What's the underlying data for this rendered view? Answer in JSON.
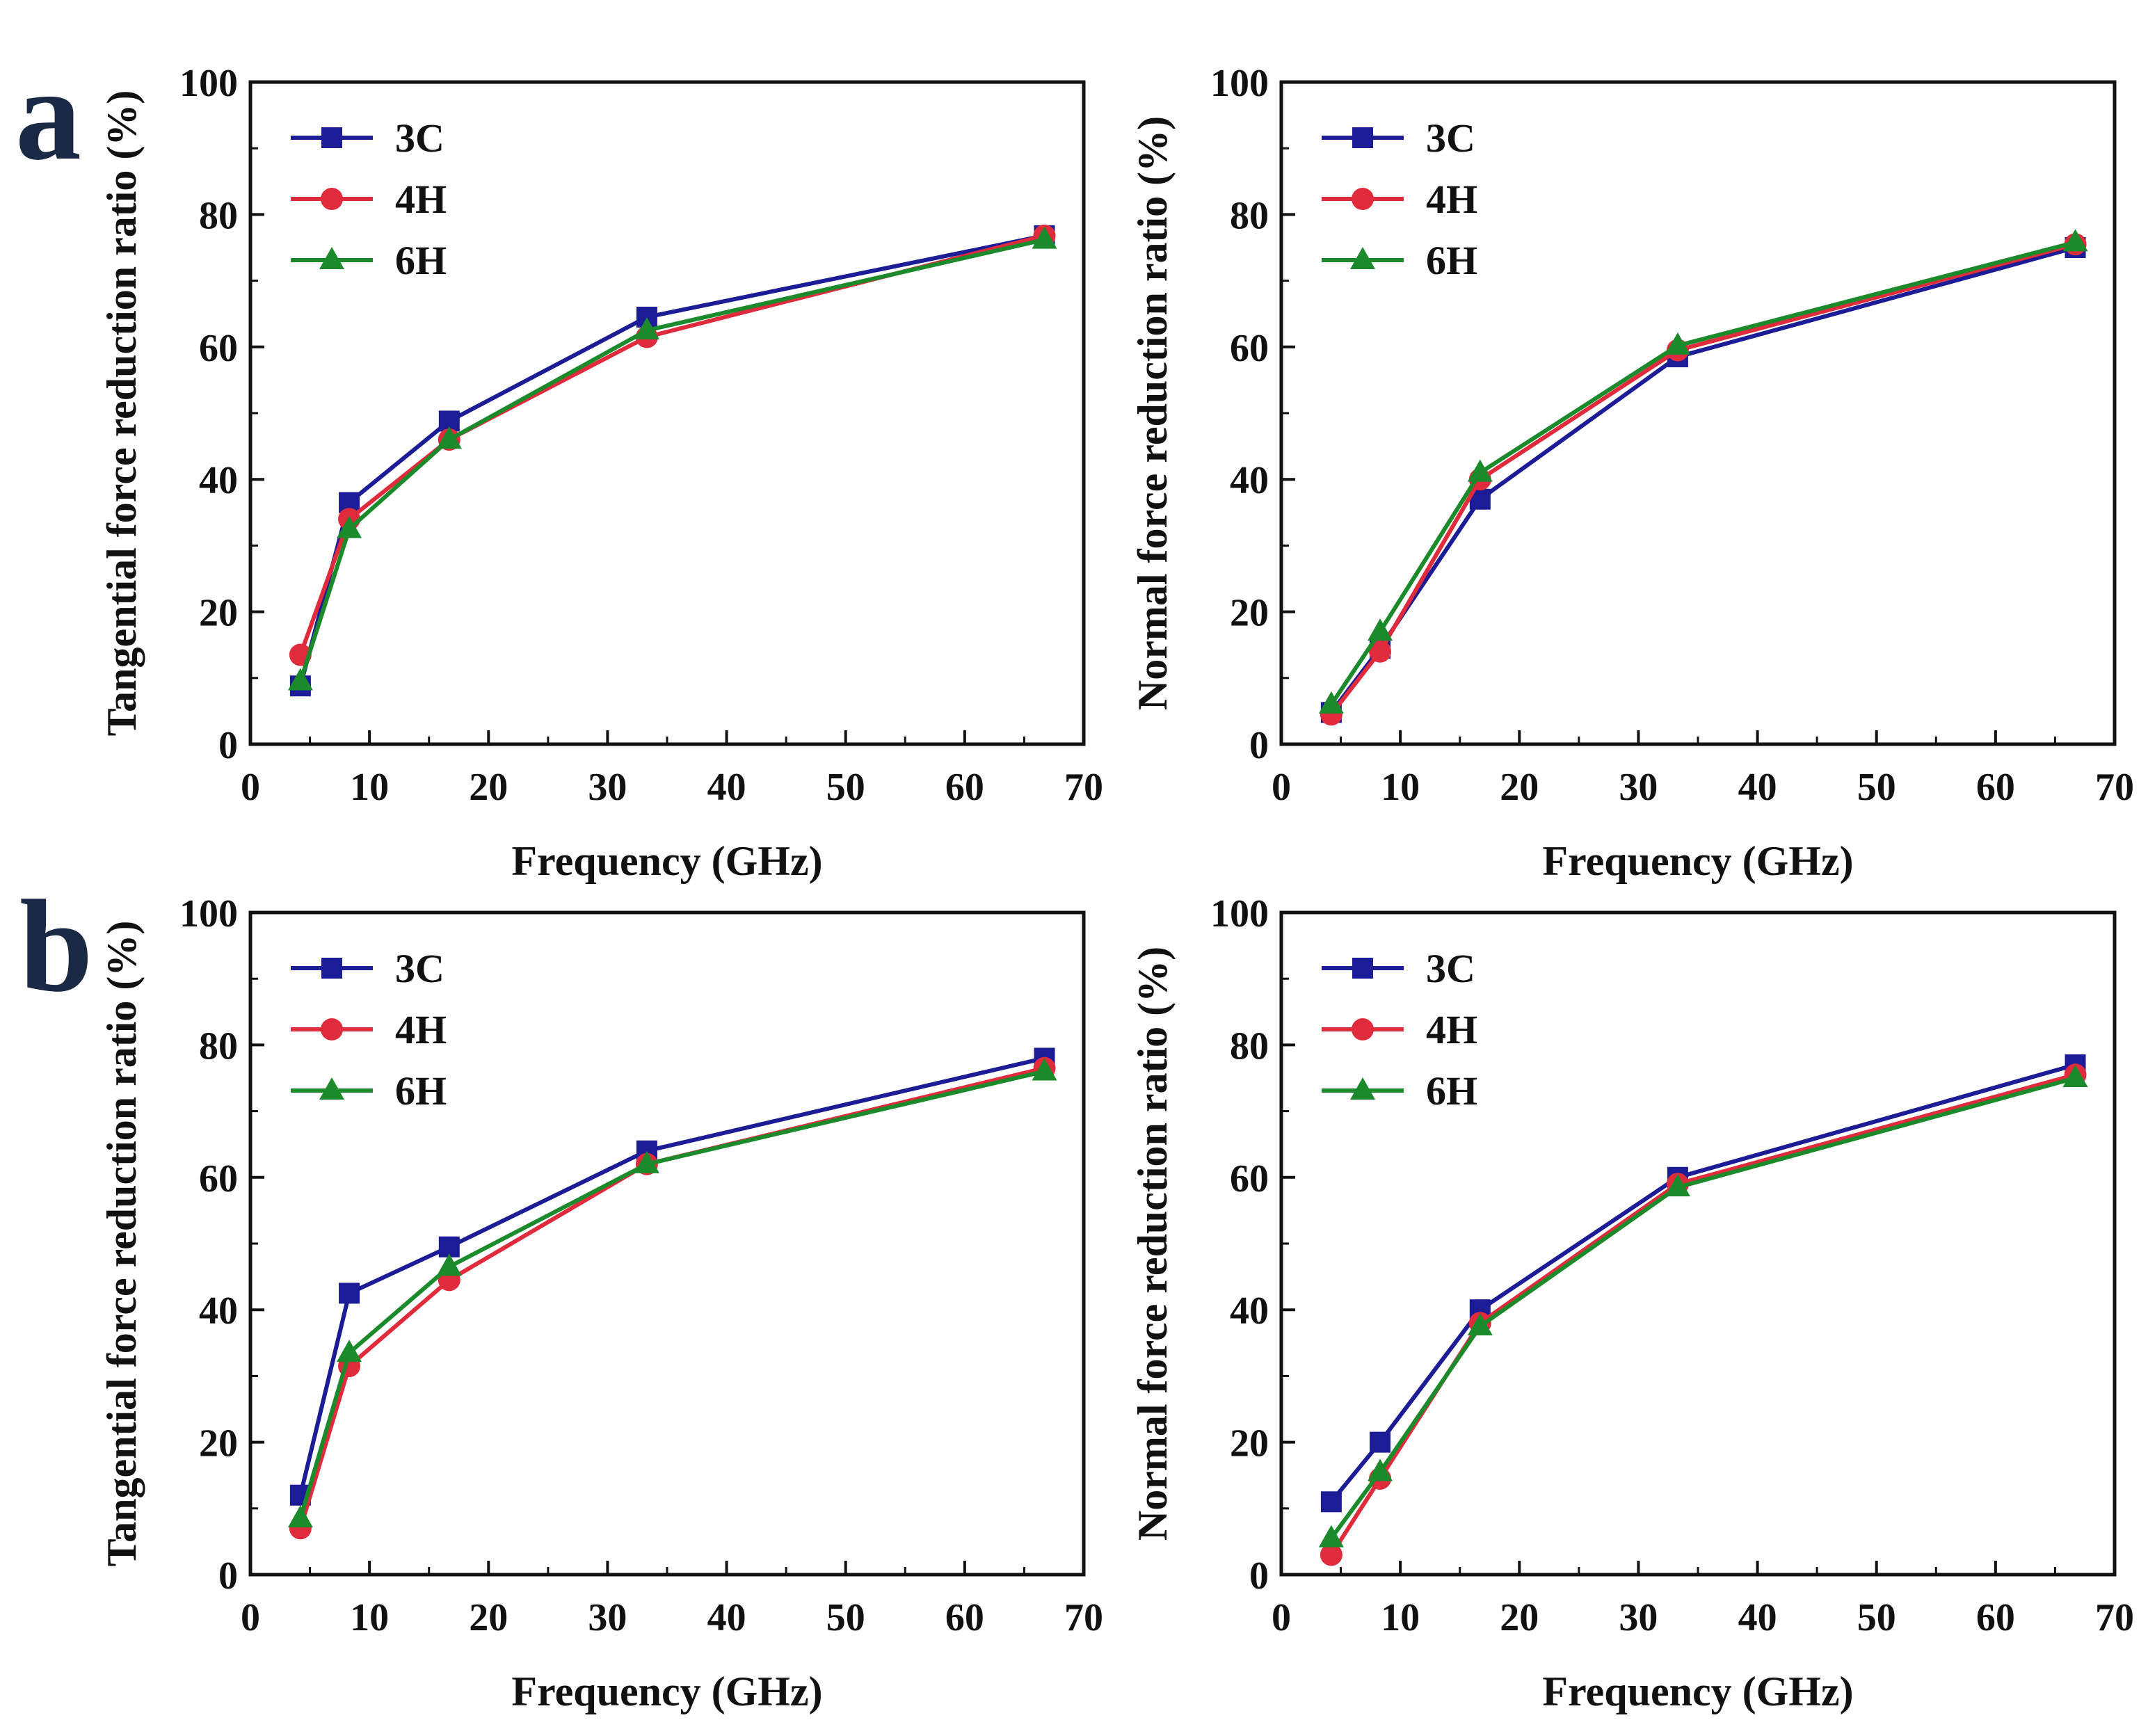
{
  "figure": {
    "row_labels": [
      "a",
      "b"
    ],
    "colors": {
      "3C": "#1c1c96",
      "4H": "#e02b3c",
      "6H": "#1a8a2a",
      "axis": "#111111"
    },
    "markers": {
      "3C": "square",
      "4H": "circle",
      "6H": "triangle"
    }
  },
  "chart_data": [
    {
      "type": "line",
      "panel": "a",
      "xlabel": "Frequency (GHz)",
      "ylabel": "Tangential force reduction ratio (%)",
      "xlim": [
        0,
        70
      ],
      "ylim": [
        0,
        100
      ],
      "xticks": [
        "0",
        "10",
        "20",
        "30",
        "40",
        "50",
        "60",
        "70"
      ],
      "yticks": [
        "0",
        "20",
        "40",
        "60",
        "80",
        "100"
      ],
      "legend_position": "top-left",
      "x": [
        4.2,
        8.3,
        16.7,
        33.3,
        66.7
      ],
      "series": [
        {
          "name": "3C",
          "values": [
            8.8,
            36.5,
            48.8,
            64.5,
            76.8
          ]
        },
        {
          "name": "4H",
          "values": [
            13.5,
            34.0,
            46.0,
            61.5,
            76.8
          ]
        },
        {
          "name": "6H",
          "values": [
            9.5,
            32.5,
            46.0,
            62.5,
            76.2
          ]
        }
      ]
    },
    {
      "type": "line",
      "panel": "a",
      "xlabel": "Frequency (GHz)",
      "ylabel": "Normal force reduction ratio (%)",
      "xlim": [
        0,
        70
      ],
      "ylim": [
        0,
        100
      ],
      "xticks": [
        "0",
        "10",
        "20",
        "30",
        "40",
        "50",
        "60",
        "70"
      ],
      "yticks": [
        "0",
        "20",
        "40",
        "60",
        "80",
        "100"
      ],
      "legend_position": "top-left",
      "x": [
        4.2,
        8.3,
        16.7,
        33.3,
        66.7
      ],
      "series": [
        {
          "name": "3C",
          "values": [
            4.8,
            14.5,
            37.0,
            58.5,
            75.0
          ]
        },
        {
          "name": "4H",
          "values": [
            4.5,
            14.0,
            40.0,
            59.5,
            75.5
          ]
        },
        {
          "name": "6H",
          "values": [
            6.0,
            17.0,
            41.0,
            60.2,
            75.8
          ]
        }
      ]
    },
    {
      "type": "line",
      "panel": "b",
      "xlabel": "Frequency (GHz)",
      "ylabel": "Tangential force reduction ratio (%)",
      "xlim": [
        0,
        70
      ],
      "ylim": [
        0,
        100
      ],
      "xticks": [
        "0",
        "10",
        "20",
        "30",
        "40",
        "50",
        "60",
        "70"
      ],
      "yticks": [
        "0",
        "20",
        "40",
        "60",
        "80",
        "100"
      ],
      "legend_position": "top-left",
      "x": [
        4.2,
        8.3,
        16.7,
        33.3,
        66.7
      ],
      "series": [
        {
          "name": "3C",
          "values": [
            12.0,
            42.5,
            49.5,
            64.0,
            78.0
          ]
        },
        {
          "name": "4H",
          "values": [
            7.0,
            31.5,
            44.5,
            62.0,
            76.5
          ]
        },
        {
          "name": "6H",
          "values": [
            8.5,
            33.5,
            46.5,
            62.0,
            76.0
          ]
        }
      ]
    },
    {
      "type": "line",
      "panel": "b",
      "xlabel": "Frequency (GHz)",
      "ylabel": "Normal force reduction ratio (%)",
      "xlim": [
        0,
        70
      ],
      "ylim": [
        0,
        100
      ],
      "xticks": [
        "0",
        "10",
        "20",
        "30",
        "40",
        "50",
        "60",
        "70"
      ],
      "yticks": [
        "0",
        "20",
        "40",
        "60",
        "80",
        "100"
      ],
      "legend_position": "top-left",
      "x": [
        4.2,
        8.3,
        16.7,
        33.3,
        66.7
      ],
      "series": [
        {
          "name": "3C",
          "values": [
            11.0,
            20.0,
            40.0,
            60.0,
            77.0
          ]
        },
        {
          "name": "4H",
          "values": [
            3.0,
            14.5,
            38.0,
            59.0,
            75.5
          ]
        },
        {
          "name": "6H",
          "values": [
            5.5,
            15.5,
            37.5,
            58.5,
            75.0
          ]
        }
      ]
    }
  ]
}
